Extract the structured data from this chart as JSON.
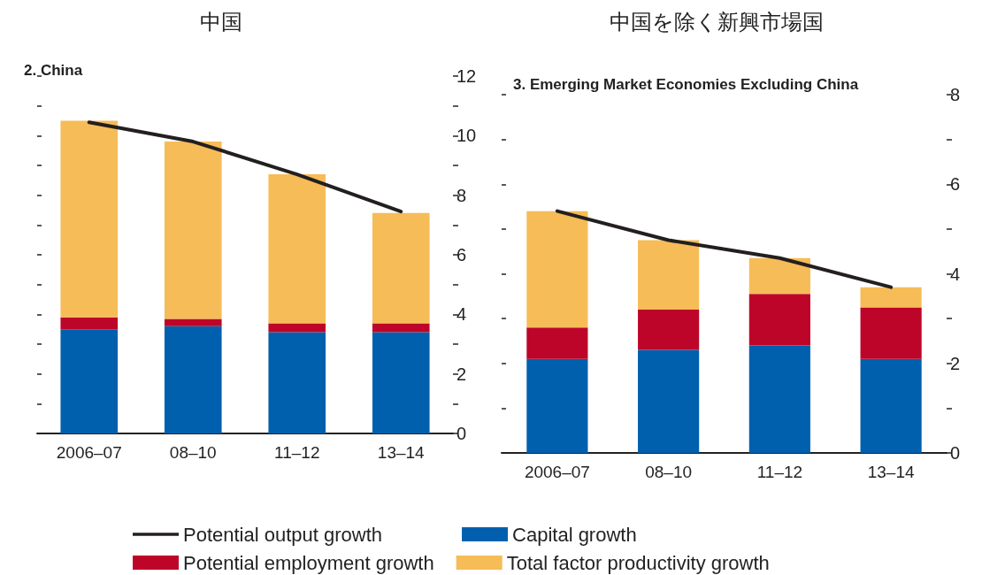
{
  "chart_data": [
    {
      "type": "bar",
      "title": "中国",
      "subtitle": "2. China",
      "categories": [
        "2006–07",
        "08–10",
        "11–12",
        "13–14"
      ],
      "stacked": true,
      "legend": "bottom",
      "series": [
        {
          "name": "Capital growth",
          "color": "#0060ae",
          "values": [
            3.5,
            3.6,
            3.4,
            3.4
          ]
        },
        {
          "name": "Potential employment growth",
          "color": "#bd0529",
          "values": [
            0.4,
            0.25,
            0.3,
            0.3
          ]
        },
        {
          "name": "Total factor productivity growth",
          "color": "#f6bc57",
          "values": [
            6.6,
            5.95,
            5.0,
            3.7
          ]
        },
        {
          "name": "Potential output growth",
          "type": "line",
          "color": "#231f20",
          "values": [
            10.45,
            9.8,
            8.7,
            7.45
          ]
        }
      ],
      "ylim": [
        0,
        12
      ],
      "yticks": [
        0,
        {
          "value": 1,
          "label": null
        },
        2,
        {
          "value": 3,
          "label": null
        },
        4,
        {
          "value": 5,
          "label": null
        },
        6,
        {
          "value": 7,
          "label": null
        },
        8,
        {
          "value": 9,
          "label": null
        },
        10,
        {
          "value": 11,
          "label": null
        },
        12
      ],
      "marker": "none",
      "line_style": "solid"
    },
    {
      "type": "bar",
      "title": "中国を除く新興市場国",
      "subtitle": "3. Emerging Market Economies Excluding China",
      "categories": [
        "2006–07",
        "08–10",
        "11–12",
        "13–14"
      ],
      "stacked": true,
      "series": [
        {
          "color": "#0060ae",
          "values": [
            2.1,
            2.3,
            2.4,
            2.1
          ]
        },
        {
          "color": "#bd0529",
          "values": [
            0.7,
            0.9,
            1.15,
            1.15
          ]
        },
        {
          "color": "#f6bc57",
          "values": [
            2.6,
            1.55,
            0.8,
            0.45
          ]
        },
        {
          "type": "line",
          "color": "#231f20",
          "values": [
            5.4,
            4.75,
            4.35,
            3.7
          ]
        }
      ],
      "ylim": [
        0,
        8
      ],
      "yticks": [
        0,
        {
          "value": 1,
          "label": null
        },
        2,
        {
          "value": 3,
          "label": null
        },
        4,
        {
          "value": 5,
          "label": null
        },
        6,
        {
          "value": 7,
          "label": null
        },
        8
      ],
      "marker": "none",
      "line_style": "solid"
    }
  ]
}
